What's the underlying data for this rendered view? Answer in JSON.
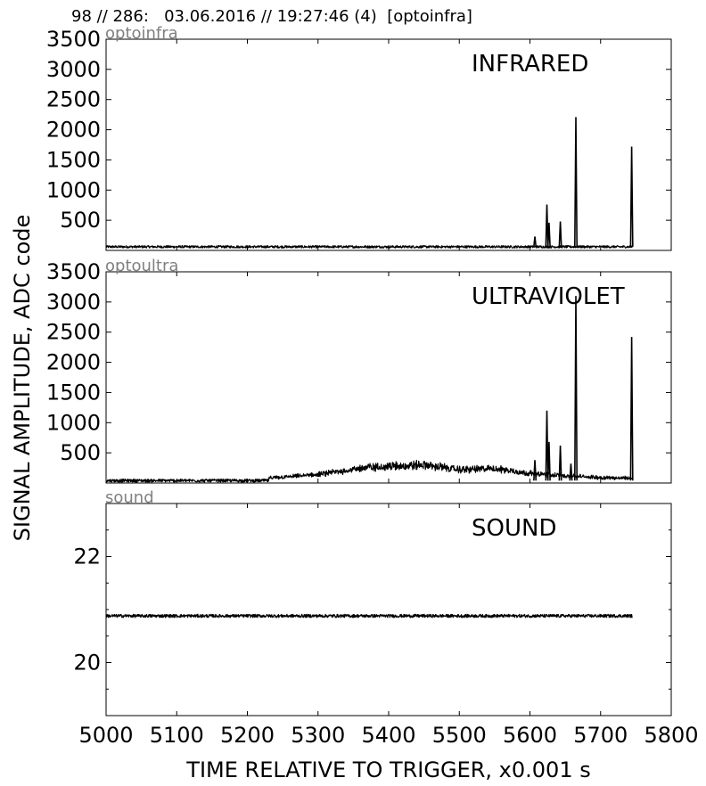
{
  "header": {
    "title": "98 // 286:   03.06.2016 // 19:27:46 (4)  [optoinfra]"
  },
  "figure": {
    "xlabel": "TIME RELATIVE TO TRIGGER,   x0.001 s",
    "ylabel": "SIGNAL AMPLITUDE,  ADC code"
  },
  "chart_data": [
    {
      "type": "line",
      "corner_label": "optoinfra",
      "panel_label": "INFRARED",
      "xlim": [
        5000,
        5800
      ],
      "ylim": [
        0,
        3500
      ],
      "xticks": [
        5000,
        5100,
        5200,
        5300,
        5400,
        5500,
        5600,
        5700,
        5800
      ],
      "yticks": [
        500,
        1000,
        1500,
        2000,
        2500,
        3000,
        3500
      ],
      "ytick_labels": [
        "500",
        "1000",
        "1500",
        "2000",
        "2500",
        "3000",
        "3500"
      ],
      "show_xtick_labels": false,
      "baseline": 60,
      "noise": 20,
      "x_end": 5745,
      "hump": [],
      "peaks": [
        [
          5607,
          230
        ],
        [
          5624,
          760
        ],
        [
          5627,
          460
        ],
        [
          5643,
          480
        ],
        [
          5665,
          2210
        ],
        [
          5744,
          1720
        ]
      ],
      "series": [
        {
          "x": [
            5000,
            5100,
            5200,
            5300,
            5400,
            5450,
            5500,
            5600,
            5665,
            5744,
            5745
          ],
          "y": [
            60,
            70,
            60,
            80,
            90,
            120,
            90,
            100,
            2210,
            1720,
            30
          ]
        }
      ]
    },
    {
      "type": "line",
      "corner_label": "optoultra",
      "panel_label": "ULTRAVIOLET",
      "xlim": [
        5000,
        5800
      ],
      "ylim": [
        0,
        3500
      ],
      "xticks": [
        5000,
        5100,
        5200,
        5300,
        5400,
        5500,
        5600,
        5700,
        5800
      ],
      "yticks": [
        500,
        1000,
        1500,
        2000,
        2500,
        3000,
        3500
      ],
      "ytick_labels": [
        "500",
        "1000",
        "1500",
        "2000",
        "2500",
        "3000",
        "3500"
      ],
      "show_xtick_labels": false,
      "baseline": 40,
      "noise": 25,
      "x_end": 5745,
      "hump": [
        [
          5230,
          40
        ],
        [
          5300,
          100
        ],
        [
          5370,
          220
        ],
        [
          5450,
          260
        ],
        [
          5500,
          180
        ],
        [
          5550,
          200
        ],
        [
          5600,
          120
        ],
        [
          5650,
          80
        ],
        [
          5700,
          50
        ],
        [
          5745,
          40
        ]
      ],
      "peaks": [
        [
          5607,
          380
        ],
        [
          5624,
          1200
        ],
        [
          5627,
          680
        ],
        [
          5643,
          620
        ],
        [
          5658,
          320
        ],
        [
          5665,
          3100
        ],
        [
          5744,
          2420
        ]
      ],
      "series": [
        {
          "x": [
            5000,
            5230,
            5370,
            5450,
            5550,
            5624,
            5665,
            5744,
            5745
          ],
          "y": [
            40,
            40,
            220,
            260,
            200,
            1200,
            3100,
            2420,
            30
          ]
        }
      ]
    },
    {
      "type": "line",
      "corner_label": "sound",
      "panel_label": "SOUND",
      "xlim": [
        5000,
        5800
      ],
      "ylim": [
        19,
        23
      ],
      "xticks": [
        5000,
        5100,
        5200,
        5300,
        5400,
        5500,
        5600,
        5700,
        5800
      ],
      "xtick_labels": [
        "5000",
        "5100",
        "5200",
        "5300",
        "5400",
        "5500",
        "5600",
        "5700",
        "5800"
      ],
      "yticks": [
        20,
        22
      ],
      "ytick_labels": [
        "20",
        "22"
      ],
      "show_xtick_labels": true,
      "baseline": 20.88,
      "noise": 0.03,
      "x_end": 5745,
      "hump": [],
      "peaks": [],
      "series": [
        {
          "x": [
            5000,
            5745
          ],
          "y": [
            20.9,
            20.88
          ]
        }
      ]
    }
  ]
}
